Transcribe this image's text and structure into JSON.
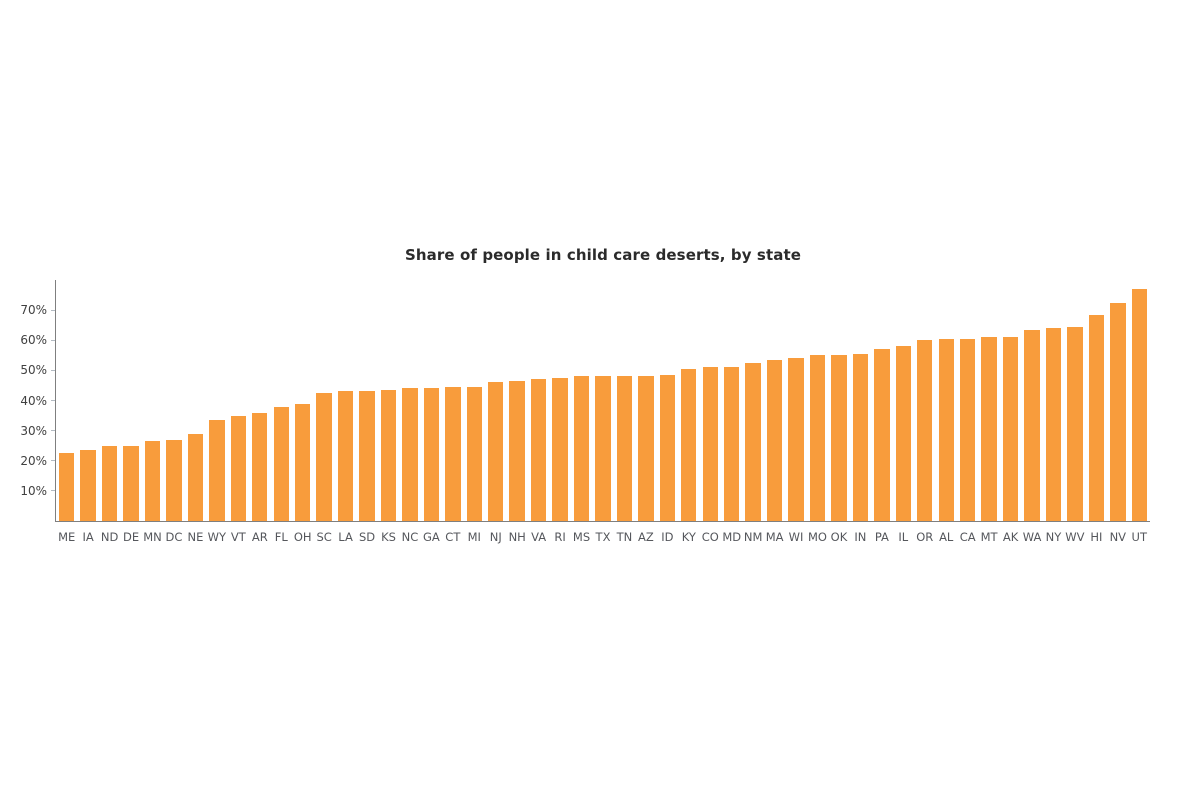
{
  "chart_data": {
    "type": "bar",
    "title": "Share of people in child care deserts, by state",
    "categories": [
      "ME",
      "IA",
      "ND",
      "DE",
      "MN",
      "DC",
      "NE",
      "WY",
      "VT",
      "AR",
      "FL",
      "OH",
      "SC",
      "LA",
      "SD",
      "KS",
      "NC",
      "GA",
      "CT",
      "MI",
      "NJ",
      "NH",
      "VA",
      "RI",
      "MS",
      "TX",
      "TN",
      "AZ",
      "ID",
      "KY",
      "CO",
      "MD",
      "NM",
      "MA",
      "WI",
      "MO",
      "OK",
      "IN",
      "PA",
      "IL",
      "OR",
      "AL",
      "CA",
      "MT",
      "AK",
      "WA",
      "NY",
      "WV",
      "HI",
      "NV",
      "UT"
    ],
    "values": [
      22.5,
      23.5,
      25,
      25,
      26.5,
      27,
      29,
      33.5,
      35,
      36,
      38,
      39,
      42.5,
      43,
      43,
      43.5,
      44,
      44,
      44.5,
      44.5,
      46,
      46.5,
      47,
      47.5,
      48,
      48,
      48,
      48,
      48.5,
      50.5,
      51,
      51,
      52.5,
      53.5,
      54,
      55,
      55,
      55.5,
      57,
      58,
      60,
      60.5,
      60.5,
      61,
      61,
      63.5,
      64,
      64.5,
      68.5,
      72.5,
      77
    ],
    "unit": "%",
    "xlabel": "",
    "ylabel": "",
    "ylim": [
      0,
      80
    ],
    "yticks": [
      10,
      20,
      30,
      40,
      50,
      60,
      70
    ],
    "ytick_suffix": "%",
    "grid": false,
    "legend": "none",
    "bar_color": "#F89C3C",
    "axis_color": "#7f7f7f",
    "tick_mark_color": "#b3bac2",
    "ytick_label_color": "#404040",
    "xtick_label_color": "#55575c",
    "title_color": "#2b2b2b",
    "background_color": "#ffffff"
  }
}
